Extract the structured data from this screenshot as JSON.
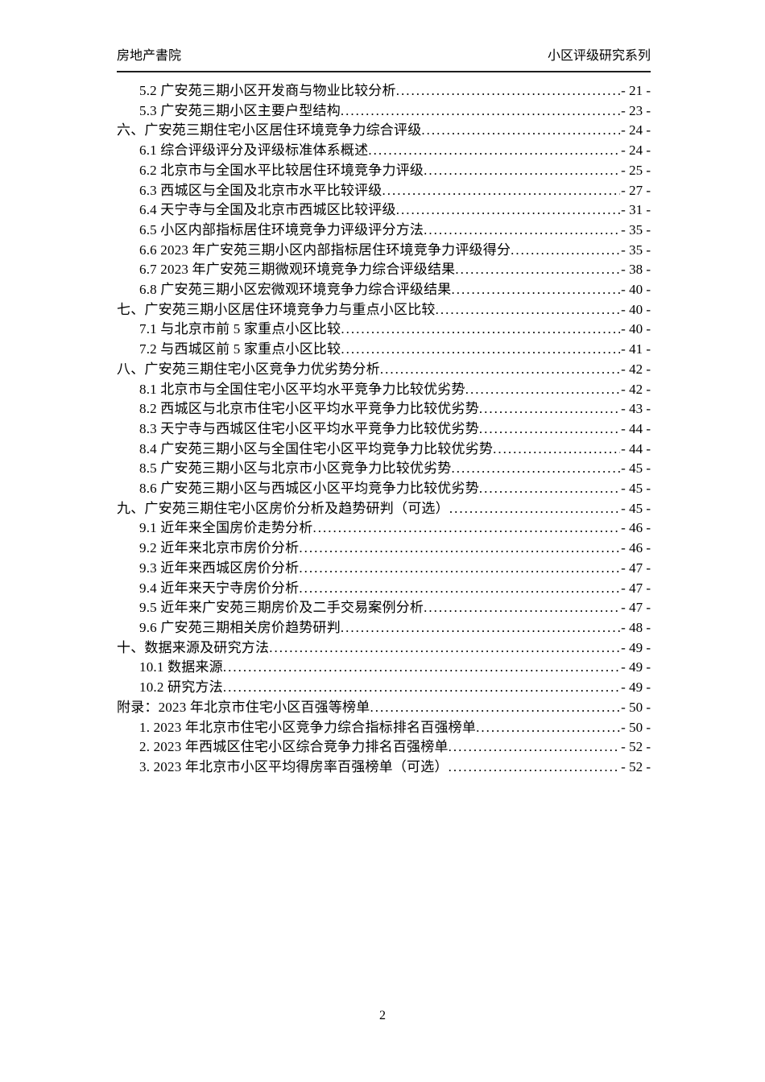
{
  "header": {
    "left": "房地产書院",
    "right": "小区评级研究系列"
  },
  "toc": {
    "entries": [
      {
        "level": 2,
        "title": "5.2 广安苑三期小区开发商与物业比较分析",
        "page": "- 21 -"
      },
      {
        "level": 2,
        "title": "5.3 广安苑三期小区主要户型结构",
        "page": "- 23 -"
      },
      {
        "level": 1,
        "title": "六、广安苑三期住宅小区居住环境竞争力综合评级",
        "page": "- 24 -"
      },
      {
        "level": 2,
        "title": "6.1 综合评级评分及评级标准体系概述",
        "page": "- 24 -"
      },
      {
        "level": 2,
        "title": "6.2 北京市与全国水平比较居住环境竞争力评级",
        "page": "- 25 -"
      },
      {
        "level": 2,
        "title": "6.3 西城区与全国及北京市水平比较评级",
        "page": "- 27 -"
      },
      {
        "level": 2,
        "title": "6.4 天宁寺与全国及北京市西城区比较评级",
        "page": "- 31 -"
      },
      {
        "level": 2,
        "title": "6.5 小区内部指标居住环境竞争力评级评分方法",
        "page": "- 35 -"
      },
      {
        "level": 2,
        "title": "6.6 2023 年广安苑三期小区内部指标居住环境竞争力评级得分",
        "page": "- 35 -"
      },
      {
        "level": 2,
        "title": "6.7 2023 年广安苑三期微观环境竞争力综合评级结果",
        "page": "- 38 -"
      },
      {
        "level": 2,
        "title": "6.8 广安苑三期小区宏微观环境竞争力综合评级结果",
        "page": "- 40 -"
      },
      {
        "level": 1,
        "title": "七、广安苑三期小区居住环境竞争力与重点小区比较",
        "page": "- 40 -"
      },
      {
        "level": 2,
        "title": "7.1 与北京市前 5 家重点小区比较",
        "page": "- 40 -"
      },
      {
        "level": 2,
        "title": "7.2 与西城区前 5 家重点小区比较",
        "page": "- 41 -"
      },
      {
        "level": 1,
        "title": "八、广安苑三期住宅小区竞争力优劣势分析",
        "page": "- 42 -"
      },
      {
        "level": 2,
        "title": "8.1 北京市与全国住宅小区平均水平竞争力比较优劣势",
        "page": "- 42 -"
      },
      {
        "level": 2,
        "title": "8.2 西城区与北京市住宅小区平均水平竞争力比较优劣势",
        "page": "- 43 -"
      },
      {
        "level": 2,
        "title": "8.3 天宁寺与西城区住宅小区平均水平竞争力比较优劣势",
        "page": "- 44 -"
      },
      {
        "level": 2,
        "title": "8.4 广安苑三期小区与全国住宅小区平均竞争力比较优劣势",
        "page": "- 44 -"
      },
      {
        "level": 2,
        "title": "8.5 广安苑三期小区与北京市小区竞争力比较优劣势",
        "page": "- 45 -"
      },
      {
        "level": 2,
        "title": "8.6 广安苑三期小区与西城区小区平均竞争力比较优劣势",
        "page": "- 45 -"
      },
      {
        "level": 1,
        "title": "九、广安苑三期住宅小区房价分析及趋势研判（可选）",
        "page": "- 45 -"
      },
      {
        "level": 2,
        "title": "9.1 近年来全国房价走势分析",
        "page": "- 46 -"
      },
      {
        "level": 2,
        "title": "9.2 近年来北京市房价分析",
        "page": "- 46 -"
      },
      {
        "level": 2,
        "title": "9.3 近年来西城区房价分析",
        "page": "- 47 -"
      },
      {
        "level": 2,
        "title": "9.4 近年来天宁寺房价分析",
        "page": "- 47 -"
      },
      {
        "level": 2,
        "title": "9.5 近年来广安苑三期房价及二手交易案例分析",
        "page": "- 47 -"
      },
      {
        "level": 2,
        "title": "9.6 广安苑三期相关房价趋势研判",
        "page": "- 48 -"
      },
      {
        "level": 1,
        "title": "十、数据来源及研究方法",
        "page": "- 49 -"
      },
      {
        "level": 2,
        "title": "10.1 数据来源",
        "page": "- 49 -"
      },
      {
        "level": 2,
        "title": "10.2 研究方法",
        "page": "- 49 -"
      },
      {
        "level": 1,
        "title": "附录：2023 年北京市住宅小区百强等榜单",
        "page": "- 50 -"
      },
      {
        "level": 2,
        "title": "1. 2023 年北京市住宅小区竞争力综合指标排名百强榜单",
        "page": "- 50 -"
      },
      {
        "level": 2,
        "title": "2. 2023 年西城区住宅小区综合竞争力排名百强榜单",
        "page": "- 52 -"
      },
      {
        "level": 2,
        "title": "3. 2023 年北京市小区平均得房率百强榜单（可选）",
        "page": "- 52 -"
      }
    ]
  },
  "footer": {
    "page_number": "2"
  }
}
